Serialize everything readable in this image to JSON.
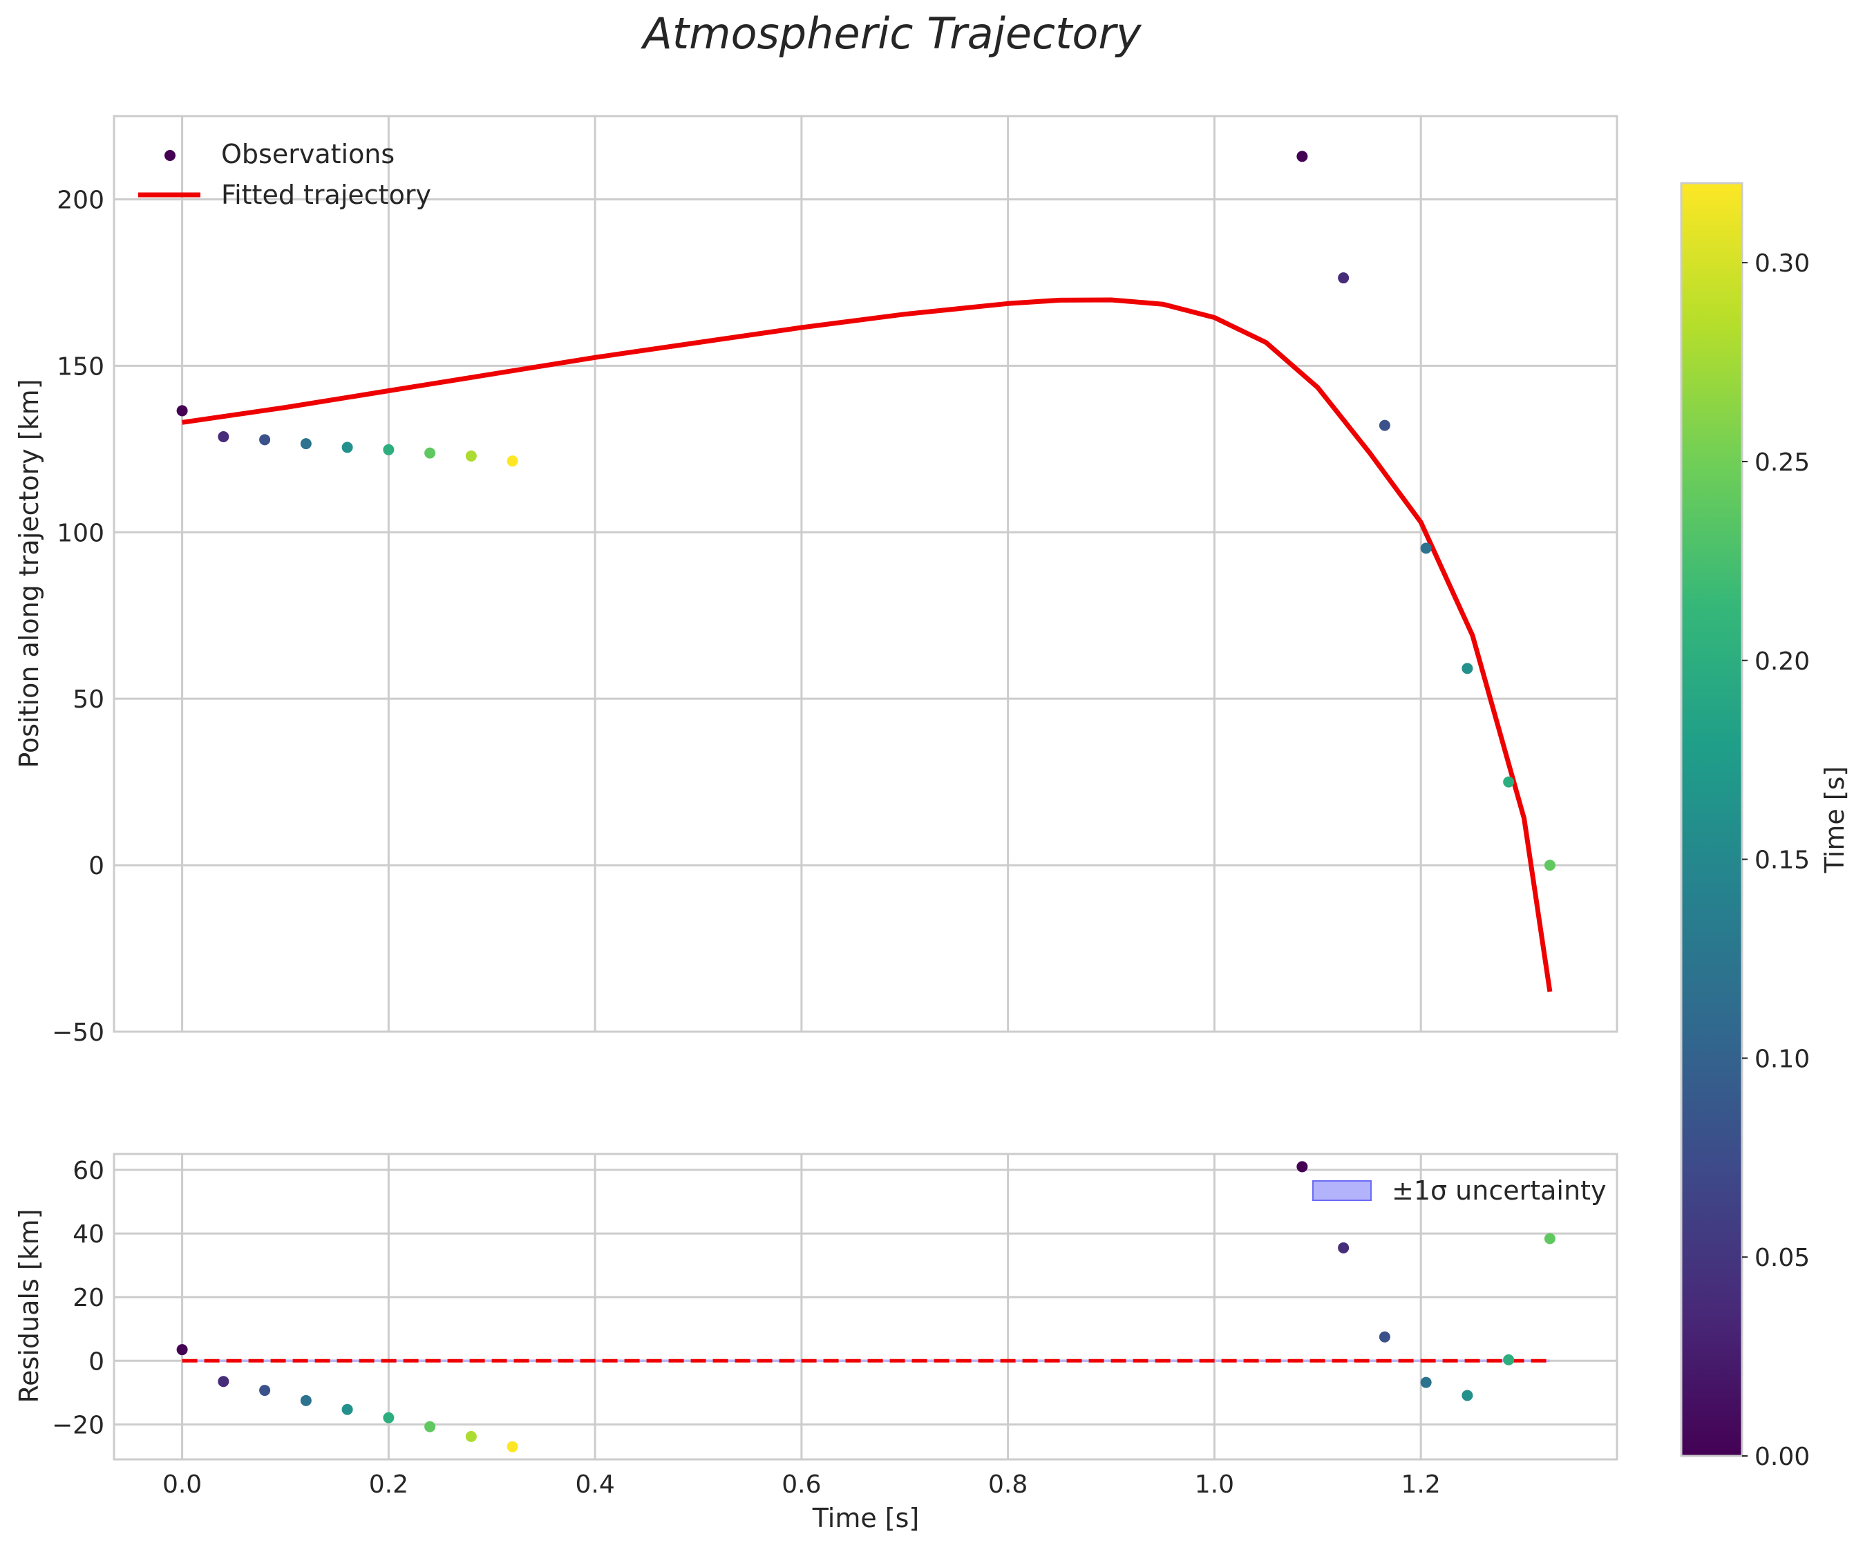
{
  "chart_data": [
    {
      "type": "scatter+line",
      "title": "Atmospheric Trajectory",
      "xlabel": "",
      "ylabel": "Position along trajectory [km]",
      "xlim": [
        -0.066,
        1.39
      ],
      "ylim": [
        -50,
        225
      ],
      "xticks": [
        0.0,
        0.2,
        0.4,
        0.6,
        0.8,
        1.0,
        1.2
      ],
      "yticks": [
        -50,
        0,
        50,
        100,
        150,
        200
      ],
      "ytick_labels": [
        "−50",
        "0",
        "50",
        "100",
        "150",
        "200"
      ],
      "legend": {
        "position": "top-left",
        "entries": [
          "Observations",
          "Fitted trajectory"
        ]
      },
      "series": [
        {
          "name": "Observations",
          "kind": "scatter",
          "color_by": "Time [s]",
          "points": [
            {
              "x": 0.0,
              "y": 136.5,
              "c": 0.0
            },
            {
              "x": 0.04,
              "y": 128.7,
              "c": 0.04
            },
            {
              "x": 0.08,
              "y": 127.8,
              "c": 0.08
            },
            {
              "x": 0.12,
              "y": 126.6,
              "c": 0.12
            },
            {
              "x": 0.16,
              "y": 125.5,
              "c": 0.16
            },
            {
              "x": 0.2,
              "y": 124.8,
              "c": 0.2
            },
            {
              "x": 0.24,
              "y": 123.8,
              "c": 0.24
            },
            {
              "x": 0.28,
              "y": 122.9,
              "c": 0.28
            },
            {
              "x": 0.32,
              "y": 121.4,
              "c": 0.32
            },
            {
              "x": 1.085,
              "y": 212.9,
              "c": 0.0
            },
            {
              "x": 1.125,
              "y": 176.4,
              "c": 0.04
            },
            {
              "x": 1.165,
              "y": 132.1,
              "c": 0.08
            },
            {
              "x": 1.205,
              "y": 95.2,
              "c": 0.12
            },
            {
              "x": 1.245,
              "y": 59.1,
              "c": 0.16
            },
            {
              "x": 1.285,
              "y": 25.0,
              "c": 0.2
            },
            {
              "x": 1.325,
              "y": 0.0,
              "c": 0.24
            }
          ]
        },
        {
          "name": "Fitted trajectory",
          "kind": "line",
          "color": "#ee0000",
          "x": [
            0.0,
            0.1,
            0.2,
            0.3,
            0.4,
            0.5,
            0.6,
            0.7,
            0.8,
            0.85,
            0.9,
            0.95,
            1.0,
            1.05,
            1.1,
            1.15,
            1.2,
            1.25,
            1.3,
            1.325
          ],
          "y": [
            133,
            137.5,
            142.5,
            147.5,
            152.5,
            157,
            161.5,
            165.5,
            168.7,
            169.7,
            169.8,
            168.5,
            164.5,
            157,
            143.5,
            124,
            103,
            69,
            14,
            -38
          ]
        }
      ]
    },
    {
      "type": "scatter",
      "title": "",
      "xlabel": "Time [s]",
      "ylabel": "Residuals [km]",
      "xlim": [
        -0.066,
        1.39
      ],
      "ylim": [
        -31,
        65
      ],
      "xticks": [
        0.0,
        0.2,
        0.4,
        0.6,
        0.8,
        1.0,
        1.2
      ],
      "xtick_labels": [
        "0.0",
        "0.2",
        "0.4",
        "0.6",
        "0.8",
        "1.0",
        "1.2"
      ],
      "yticks": [
        -20,
        0,
        20,
        40,
        60
      ],
      "ytick_labels": [
        "−20",
        "0",
        "20",
        "40",
        "60"
      ],
      "zero_line": {
        "y": 0,
        "color": "#ee0000",
        "style": "dashed"
      },
      "uncertainty_band": {
        "label": "±1σ uncertainty",
        "lower": -0.4,
        "upper": 0.4,
        "color": "#b3b3fb"
      },
      "legend": {
        "position": "top-right",
        "entries": [
          "±1σ uncertainty"
        ]
      },
      "series": [
        {
          "name": "Residuals",
          "points": [
            {
              "x": 0.0,
              "y": 3.5,
              "c": 0.0
            },
            {
              "x": 0.04,
              "y": -6.5,
              "c": 0.04
            },
            {
              "x": 0.08,
              "y": -9.3,
              "c": 0.08
            },
            {
              "x": 0.12,
              "y": -12.5,
              "c": 0.12
            },
            {
              "x": 0.16,
              "y": -15.3,
              "c": 0.16
            },
            {
              "x": 0.2,
              "y": -17.9,
              "c": 0.2
            },
            {
              "x": 0.24,
              "y": -20.7,
              "c": 0.24
            },
            {
              "x": 0.28,
              "y": -23.8,
              "c": 0.28
            },
            {
              "x": 0.32,
              "y": -27.0,
              "c": 0.32
            },
            {
              "x": 1.085,
              "y": 61.0,
              "c": 0.0
            },
            {
              "x": 1.125,
              "y": 35.5,
              "c": 0.04
            },
            {
              "x": 1.165,
              "y": 7.5,
              "c": 0.08
            },
            {
              "x": 1.205,
              "y": -6.8,
              "c": 0.12
            },
            {
              "x": 1.245,
              "y": -10.9,
              "c": 0.16
            },
            {
              "x": 1.285,
              "y": 0.3,
              "c": 0.2
            },
            {
              "x": 1.325,
              "y": 38.4,
              "c": 0.24
            }
          ]
        }
      ]
    }
  ],
  "colorbar": {
    "label": "Time [s]",
    "range": [
      0.0,
      0.32
    ],
    "ticks": [
      0.0,
      0.05,
      0.1,
      0.15,
      0.2,
      0.25,
      0.3
    ],
    "tick_labels": [
      "0.00",
      "0.05",
      "0.10",
      "0.15",
      "0.20",
      "0.25",
      "0.30"
    ],
    "colormap": "viridis",
    "stops": [
      "#440154",
      "#482878",
      "#3e4989",
      "#31688e",
      "#26828e",
      "#1f9e89",
      "#35b779",
      "#6ece58",
      "#b5de2b",
      "#fde725"
    ]
  }
}
